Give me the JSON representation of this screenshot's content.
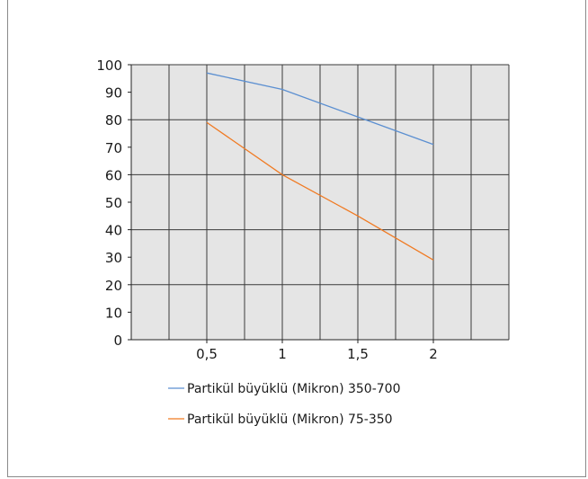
{
  "colors": {
    "plot_background": "#e5e5e5",
    "grid": "#3a3a3a",
    "axis": "#222222"
  },
  "chart_data": {
    "type": "line",
    "x": [
      "0,5",
      "1",
      "1,5",
      "2"
    ],
    "x_values": [
      0.5,
      1,
      1.5,
      2
    ],
    "xlim": [
      0,
      2.5
    ],
    "ylim": [
      0,
      100
    ],
    "yticks": [
      0,
      10,
      20,
      30,
      40,
      50,
      60,
      70,
      80,
      90,
      100
    ],
    "grid": true,
    "legend_position": "bottom",
    "series": [
      {
        "name": "Partikül büyüklü (Mikron) 350-700",
        "color": "#5b8fd1",
        "values": [
          97,
          91,
          81,
          71
        ]
      },
      {
        "name": "Partikül büyüklü (Mikron) 75-350",
        "color": "#f07a22",
        "values": [
          79,
          60,
          45,
          29
        ]
      }
    ]
  }
}
